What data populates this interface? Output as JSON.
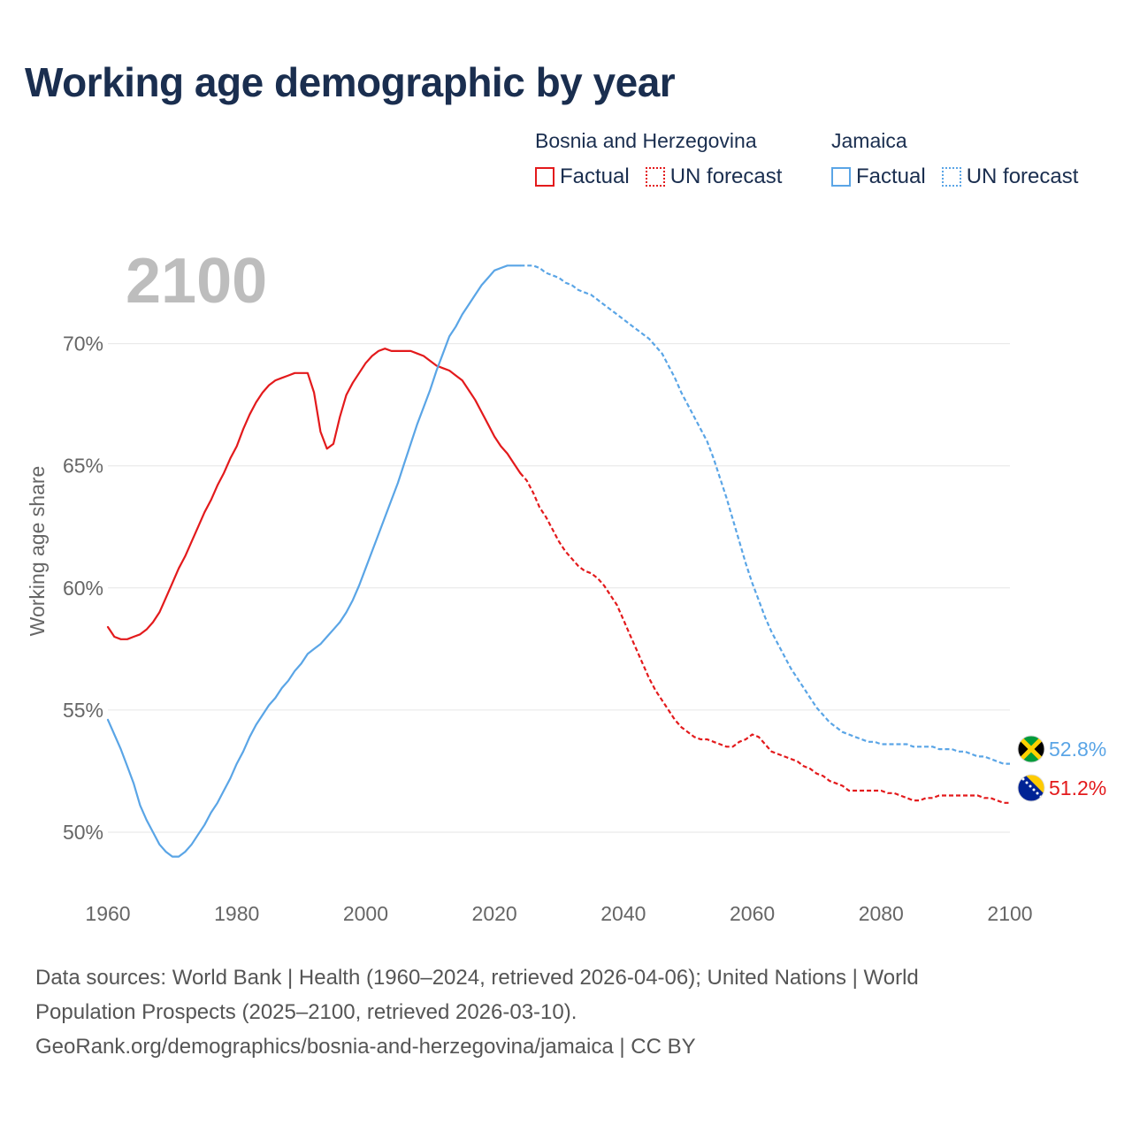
{
  "title": "Working age demographic by year",
  "year_label": "2100",
  "legend": {
    "groups": [
      {
        "name": "Bosnia and Herzegovina",
        "color": "#e31a1c",
        "factual_label": "Factual",
        "forecast_label": "UN forecast"
      },
      {
        "name": "Jamaica",
        "color": "#5aa5e6",
        "factual_label": "Factual",
        "forecast_label": "UN forecast"
      }
    ]
  },
  "sources": {
    "line1": "Data sources: World Bank | Health (1960–2024, retrieved 2026-04-06); United Nations | World",
    "line2": "Population Prospects (2025–2100, retrieved 2026-03-10).",
    "line3": "GeoRank.org/demographics/bosnia-and-herzegovina/jamaica | CC BY"
  },
  "chart_data": {
    "type": "line",
    "title": "Working age demographic by year",
    "xlabel": "",
    "ylabel": "Working age share",
    "xlim": [
      1960,
      2100
    ],
    "ylim": [
      47.5,
      73.5
    ],
    "x_ticks": [
      1960,
      1980,
      2000,
      2020,
      2040,
      2060,
      2080,
      2100
    ],
    "x_tick_labels": [
      "1960",
      "1980",
      "2000",
      "2020",
      "2040",
      "2060",
      "2080",
      "2100"
    ],
    "y_ticks": [
      50,
      55,
      60,
      65,
      70
    ],
    "y_tick_labels": [
      "50%",
      "55%",
      "60%",
      "65%",
      "70%"
    ],
    "grid": true,
    "forecast_start_year": 2024,
    "series": [
      {
        "name": "Bosnia and Herzegovina",
        "color": "#e31a1c",
        "end_label": "51.2%",
        "flag": "bosnia-and-herzegovina-flag",
        "points": [
          [
            1960,
            58.4
          ],
          [
            1961,
            58.0
          ],
          [
            1962,
            57.9
          ],
          [
            1963,
            57.9
          ],
          [
            1964,
            58.0
          ],
          [
            1965,
            58.1
          ],
          [
            1966,
            58.3
          ],
          [
            1967,
            58.6
          ],
          [
            1968,
            59.0
          ],
          [
            1969,
            59.6
          ],
          [
            1970,
            60.2
          ],
          [
            1971,
            60.8
          ],
          [
            1972,
            61.3
          ],
          [
            1973,
            61.9
          ],
          [
            1974,
            62.5
          ],
          [
            1975,
            63.1
          ],
          [
            1976,
            63.6
          ],
          [
            1977,
            64.2
          ],
          [
            1978,
            64.7
          ],
          [
            1979,
            65.3
          ],
          [
            1980,
            65.8
          ],
          [
            1981,
            66.5
          ],
          [
            1982,
            67.1
          ],
          [
            1983,
            67.6
          ],
          [
            1984,
            68.0
          ],
          [
            1985,
            68.3
          ],
          [
            1986,
            68.5
          ],
          [
            1987,
            68.6
          ],
          [
            1988,
            68.7
          ],
          [
            1989,
            68.8
          ],
          [
            1990,
            68.8
          ],
          [
            1991,
            68.8
          ],
          [
            1992,
            68.0
          ],
          [
            1993,
            66.4
          ],
          [
            1994,
            65.7
          ],
          [
            1995,
            65.9
          ],
          [
            1996,
            67.0
          ],
          [
            1997,
            67.9
          ],
          [
            1998,
            68.4
          ],
          [
            1999,
            68.8
          ],
          [
            2000,
            69.2
          ],
          [
            2001,
            69.5
          ],
          [
            2002,
            69.7
          ],
          [
            2003,
            69.8
          ],
          [
            2004,
            69.7
          ],
          [
            2005,
            69.7
          ],
          [
            2006,
            69.7
          ],
          [
            2007,
            69.7
          ],
          [
            2008,
            69.6
          ],
          [
            2009,
            69.5
          ],
          [
            2010,
            69.3
          ],
          [
            2011,
            69.1
          ],
          [
            2012,
            69.0
          ],
          [
            2013,
            68.9
          ],
          [
            2014,
            68.7
          ],
          [
            2015,
            68.5
          ],
          [
            2016,
            68.1
          ],
          [
            2017,
            67.7
          ],
          [
            2018,
            67.2
          ],
          [
            2019,
            66.7
          ],
          [
            2020,
            66.2
          ],
          [
            2021,
            65.8
          ],
          [
            2022,
            65.5
          ],
          [
            2023,
            65.1
          ],
          [
            2024,
            64.7
          ],
          [
            2025,
            64.4
          ],
          [
            2026,
            63.9
          ],
          [
            2027,
            63.3
          ],
          [
            2028,
            62.9
          ],
          [
            2029,
            62.4
          ],
          [
            2030,
            61.9
          ],
          [
            2031,
            61.5
          ],
          [
            2032,
            61.2
          ],
          [
            2033,
            60.9
          ],
          [
            2034,
            60.7
          ],
          [
            2035,
            60.6
          ],
          [
            2036,
            60.4
          ],
          [
            2037,
            60.1
          ],
          [
            2038,
            59.7
          ],
          [
            2039,
            59.3
          ],
          [
            2040,
            58.7
          ],
          [
            2041,
            58.1
          ],
          [
            2042,
            57.5
          ],
          [
            2043,
            56.9
          ],
          [
            2044,
            56.3
          ],
          [
            2045,
            55.8
          ],
          [
            2046,
            55.4
          ],
          [
            2047,
            55.0
          ],
          [
            2048,
            54.6
          ],
          [
            2049,
            54.3
          ],
          [
            2050,
            54.1
          ],
          [
            2051,
            53.9
          ],
          [
            2052,
            53.8
          ],
          [
            2053,
            53.8
          ],
          [
            2054,
            53.7
          ],
          [
            2055,
            53.6
          ],
          [
            2056,
            53.5
          ],
          [
            2057,
            53.5
          ],
          [
            2058,
            53.7
          ],
          [
            2059,
            53.8
          ],
          [
            2060,
            54.0
          ],
          [
            2061,
            53.9
          ],
          [
            2062,
            53.6
          ],
          [
            2063,
            53.3
          ],
          [
            2064,
            53.2
          ],
          [
            2065,
            53.1
          ],
          [
            2066,
            53.0
          ],
          [
            2067,
            52.9
          ],
          [
            2068,
            52.7
          ],
          [
            2069,
            52.6
          ],
          [
            2070,
            52.4
          ],
          [
            2071,
            52.3
          ],
          [
            2072,
            52.1
          ],
          [
            2073,
            52.0
          ],
          [
            2074,
            51.9
          ],
          [
            2075,
            51.7
          ],
          [
            2076,
            51.7
          ],
          [
            2077,
            51.7
          ],
          [
            2078,
            51.7
          ],
          [
            2079,
            51.7
          ],
          [
            2080,
            51.7
          ],
          [
            2081,
            51.6
          ],
          [
            2082,
            51.6
          ],
          [
            2083,
            51.5
          ],
          [
            2084,
            51.4
          ],
          [
            2085,
            51.3
          ],
          [
            2086,
            51.3
          ],
          [
            2087,
            51.4
          ],
          [
            2088,
            51.4
          ],
          [
            2089,
            51.5
          ],
          [
            2090,
            51.5
          ],
          [
            2091,
            51.5
          ],
          [
            2092,
            51.5
          ],
          [
            2093,
            51.5
          ],
          [
            2094,
            51.5
          ],
          [
            2095,
            51.5
          ],
          [
            2096,
            51.4
          ],
          [
            2097,
            51.4
          ],
          [
            2098,
            51.3
          ],
          [
            2099,
            51.2
          ],
          [
            2100,
            51.2
          ]
        ]
      },
      {
        "name": "Jamaica",
        "color": "#5aa5e6",
        "end_label": "52.8%",
        "flag": "jamaica-flag",
        "points": [
          [
            1960,
            54.6
          ],
          [
            1961,
            54.0
          ],
          [
            1962,
            53.4
          ],
          [
            1963,
            52.7
          ],
          [
            1964,
            52.0
          ],
          [
            1965,
            51.1
          ],
          [
            1966,
            50.5
          ],
          [
            1967,
            50.0
          ],
          [
            1968,
            49.5
          ],
          [
            1969,
            49.2
          ],
          [
            1970,
            49.0
          ],
          [
            1971,
            49.0
          ],
          [
            1972,
            49.2
          ],
          [
            1973,
            49.5
          ],
          [
            1974,
            49.9
          ],
          [
            1975,
            50.3
          ],
          [
            1976,
            50.8
          ],
          [
            1977,
            51.2
          ],
          [
            1978,
            51.7
          ],
          [
            1979,
            52.2
          ],
          [
            1980,
            52.8
          ],
          [
            1981,
            53.3
          ],
          [
            1982,
            53.9
          ],
          [
            1983,
            54.4
          ],
          [
            1984,
            54.8
          ],
          [
            1985,
            55.2
          ],
          [
            1986,
            55.5
          ],
          [
            1987,
            55.9
          ],
          [
            1988,
            56.2
          ],
          [
            1989,
            56.6
          ],
          [
            1990,
            56.9
          ],
          [
            1991,
            57.3
          ],
          [
            1992,
            57.5
          ],
          [
            1993,
            57.7
          ],
          [
            1994,
            58.0
          ],
          [
            1995,
            58.3
          ],
          [
            1996,
            58.6
          ],
          [
            1997,
            59.0
          ],
          [
            1998,
            59.5
          ],
          [
            1999,
            60.1
          ],
          [
            2000,
            60.8
          ],
          [
            2001,
            61.5
          ],
          [
            2002,
            62.2
          ],
          [
            2003,
            62.9
          ],
          [
            2004,
            63.6
          ],
          [
            2005,
            64.3
          ],
          [
            2006,
            65.1
          ],
          [
            2007,
            65.9
          ],
          [
            2008,
            66.7
          ],
          [
            2009,
            67.4
          ],
          [
            2010,
            68.1
          ],
          [
            2011,
            68.9
          ],
          [
            2012,
            69.6
          ],
          [
            2013,
            70.3
          ],
          [
            2014,
            70.7
          ],
          [
            2015,
            71.2
          ],
          [
            2016,
            71.6
          ],
          [
            2017,
            72.0
          ],
          [
            2018,
            72.4
          ],
          [
            2019,
            72.7
          ],
          [
            2020,
            73.0
          ],
          [
            2021,
            73.1
          ],
          [
            2022,
            73.2
          ],
          [
            2023,
            73.2
          ],
          [
            2024,
            73.2
          ],
          [
            2025,
            73.2
          ],
          [
            2026,
            73.2
          ],
          [
            2027,
            73.1
          ],
          [
            2028,
            72.9
          ],
          [
            2029,
            72.8
          ],
          [
            2030,
            72.7
          ],
          [
            2031,
            72.5
          ],
          [
            2032,
            72.4
          ],
          [
            2033,
            72.2
          ],
          [
            2034,
            72.1
          ],
          [
            2035,
            72.0
          ],
          [
            2036,
            71.8
          ],
          [
            2037,
            71.6
          ],
          [
            2038,
            71.4
          ],
          [
            2039,
            71.2
          ],
          [
            2040,
            71.0
          ],
          [
            2041,
            70.8
          ],
          [
            2042,
            70.6
          ],
          [
            2043,
            70.4
          ],
          [
            2044,
            70.2
          ],
          [
            2045,
            69.9
          ],
          [
            2046,
            69.6
          ],
          [
            2047,
            69.1
          ],
          [
            2048,
            68.6
          ],
          [
            2049,
            68.0
          ],
          [
            2050,
            67.5
          ],
          [
            2051,
            67.0
          ],
          [
            2052,
            66.5
          ],
          [
            2053,
            66.0
          ],
          [
            2054,
            65.3
          ],
          [
            2055,
            64.5
          ],
          [
            2056,
            63.7
          ],
          [
            2057,
            62.8
          ],
          [
            2058,
            61.9
          ],
          [
            2059,
            61.0
          ],
          [
            2060,
            60.2
          ],
          [
            2061,
            59.5
          ],
          [
            2062,
            58.8
          ],
          [
            2063,
            58.2
          ],
          [
            2064,
            57.7
          ],
          [
            2065,
            57.2
          ],
          [
            2066,
            56.7
          ],
          [
            2067,
            56.3
          ],
          [
            2068,
            55.9
          ],
          [
            2069,
            55.5
          ],
          [
            2070,
            55.1
          ],
          [
            2071,
            54.8
          ],
          [
            2072,
            54.5
          ],
          [
            2073,
            54.3
          ],
          [
            2074,
            54.1
          ],
          [
            2075,
            54.0
          ],
          [
            2076,
            53.9
          ],
          [
            2077,
            53.8
          ],
          [
            2078,
            53.7
          ],
          [
            2079,
            53.7
          ],
          [
            2080,
            53.6
          ],
          [
            2081,
            53.6
          ],
          [
            2082,
            53.6
          ],
          [
            2083,
            53.6
          ],
          [
            2084,
            53.6
          ],
          [
            2085,
            53.5
          ],
          [
            2086,
            53.5
          ],
          [
            2087,
            53.5
          ],
          [
            2088,
            53.5
          ],
          [
            2089,
            53.4
          ],
          [
            2090,
            53.4
          ],
          [
            2091,
            53.4
          ],
          [
            2092,
            53.3
          ],
          [
            2093,
            53.3
          ],
          [
            2094,
            53.2
          ],
          [
            2095,
            53.1
          ],
          [
            2096,
            53.1
          ],
          [
            2097,
            53.0
          ],
          [
            2098,
            52.9
          ],
          [
            2099,
            52.8
          ],
          [
            2100,
            52.8
          ]
        ]
      }
    ]
  }
}
